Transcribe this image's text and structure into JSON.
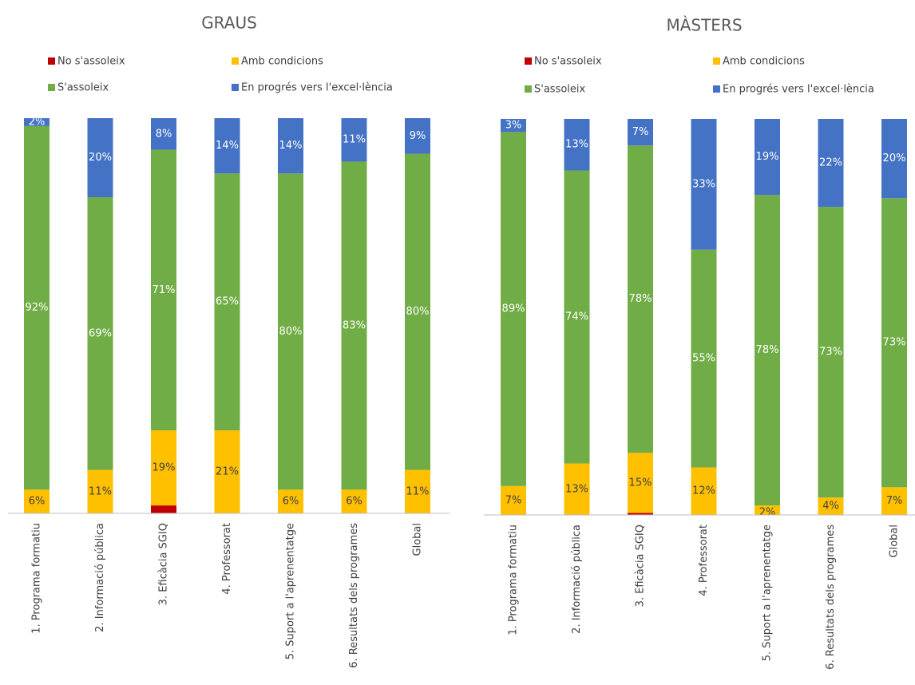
{
  "chart_data": [
    {
      "type": "bar",
      "stacked": true,
      "title": "GRAUS",
      "categories": [
        "1. Programa formatiu",
        "2. Informació pública",
        "3. Eficàcia SGIQ",
        "4. Professorat",
        "5. Suport a l'aprenentatge",
        "6. Resultats dels programes",
        "Global"
      ],
      "ylim": [
        0,
        100
      ],
      "series": [
        {
          "name": "No s'assoleix",
          "color": "#c00000",
          "values": [
            0,
            0,
            2,
            0,
            0,
            0,
            0
          ]
        },
        {
          "name": "Amb condicions",
          "color": "#ffc000",
          "values": [
            6,
            11,
            19,
            21,
            6,
            6,
            11
          ],
          "value_labels": [
            "6%",
            "11%",
            "19%",
            "21%",
            "6%",
            "6%",
            "11%"
          ]
        },
        {
          "name": "S'assoleix",
          "color": "#70ad47",
          "values": [
            92,
            69,
            71,
            65,
            80,
            83,
            80
          ],
          "value_labels": [
            "92%",
            "69%",
            "71%",
            "65%",
            "80%",
            "83%",
            "80%"
          ]
        },
        {
          "name": "En progrés vers l'excel·lència",
          "color": "#4472c4",
          "values": [
            2,
            20,
            8,
            14,
            14,
            11,
            9
          ],
          "value_labels": [
            "2%",
            "20%",
            "8%",
            "14%",
            "14%",
            "11%",
            "9%"
          ]
        }
      ]
    },
    {
      "type": "bar",
      "stacked": true,
      "title": "MÀSTERS",
      "categories": [
        "1. Programa formatiu",
        "2. Informació pública",
        "3. Eficàcia SGIQ",
        "4. Professorat",
        "5. Suport a l'aprenentatge",
        "6. Resultats dels programes",
        "Global"
      ],
      "ylim": [
        0,
        100
      ],
      "series": [
        {
          "name": "No s'assoleix",
          "color": "#c00000",
          "values": [
            0,
            0,
            0.5,
            0,
            0,
            0,
            0
          ]
        },
        {
          "name": "Amb condicions",
          "color": "#ffc000",
          "values": [
            7.3,
            13,
            15.2,
            12,
            2.4,
            4.4,
            7
          ],
          "value_labels": [
            "7%",
            "13%",
            "15%",
            "12%",
            "2%",
            "4%",
            "7%"
          ]
        },
        {
          "name": "S'assoleix",
          "color": "#70ad47",
          "values": [
            89.4,
            74,
            77.6,
            55,
            78.4,
            73.4,
            73
          ],
          "value_labels": [
            "89%",
            "74%",
            "78%",
            "55%",
            "78%",
            "73%",
            "73%"
          ]
        },
        {
          "name": "En progrés vers l'excel·lència",
          "color": "#4472c4",
          "values": [
            3.3,
            13,
            6.7,
            33,
            19.2,
            22.2,
            20
          ],
          "value_labels": [
            "3%",
            "13%",
            "7%",
            "33%",
            "19%",
            "22%",
            "20%"
          ]
        }
      ]
    }
  ]
}
